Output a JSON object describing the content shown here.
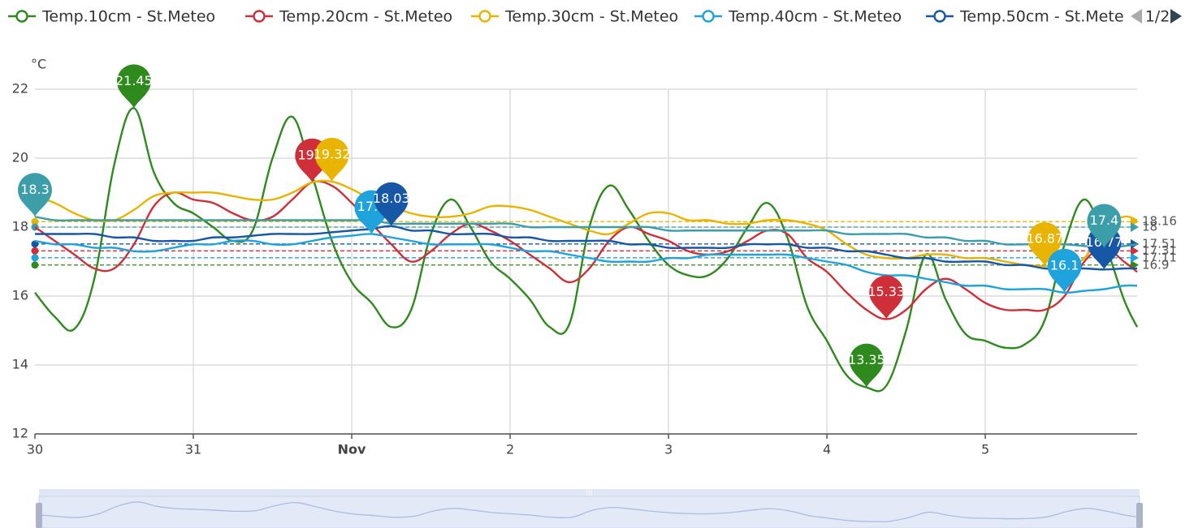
{
  "chart_data": {
    "type": "line",
    "y_label": "°C",
    "legend_page": "1/2",
    "x": [
      0,
      3,
      6,
      9,
      12,
      15,
      18,
      21,
      24,
      27,
      30,
      33,
      36,
      39,
      42,
      45,
      48,
      51,
      54,
      57,
      60,
      63,
      66,
      69,
      72,
      75,
      78,
      81,
      84,
      87,
      90,
      93,
      96,
      99,
      102,
      105,
      108,
      111,
      114,
      117,
      120,
      123,
      126,
      129,
      132,
      135,
      138,
      141,
      144,
      147,
      150,
      153,
      156,
      159,
      162,
      165,
      167
    ],
    "xlim": [
      0,
      167
    ],
    "xticks": [
      {
        "value": 0,
        "label": "30"
      },
      {
        "value": 24,
        "label": "31"
      },
      {
        "value": 48,
        "label": "Nov"
      },
      {
        "value": 72,
        "label": "2"
      },
      {
        "value": 96,
        "label": "3"
      },
      {
        "value": 120,
        "label": "4"
      },
      {
        "value": 144,
        "label": "5"
      }
    ],
    "ylim": [
      12,
      22
    ],
    "yticks": [
      12,
      14,
      16,
      18,
      20,
      22
    ],
    "grid": true,
    "series": [
      {
        "name": "Temp.10cm - St.Meteo",
        "color": "#2f8a1e",
        "average": 16.9,
        "values": [
          16.1,
          15.4,
          15.05,
          16.5,
          19.8,
          21.45,
          19.6,
          18.7,
          18.4,
          18.0,
          17.6,
          17.9,
          20.0,
          21.2,
          19.5,
          17.6,
          16.4,
          15.8,
          15.1,
          15.6,
          17.8,
          18.8,
          18.0,
          17.0,
          16.5,
          15.9,
          15.1,
          15.2,
          18.0,
          19.2,
          18.5,
          17.6,
          16.9,
          16.6,
          16.6,
          17.1,
          18.0,
          18.7,
          17.7,
          15.7,
          14.7,
          13.7,
          13.35,
          13.4,
          15.0,
          17.2,
          15.9,
          14.9,
          14.7,
          14.5,
          14.6,
          15.3,
          17.5,
          18.8,
          17.6,
          15.9,
          15.1
        ]
      },
      {
        "name": "Temp.20cm - St.Meteo",
        "color": "#cf2f38",
        "average": 17.31,
        "values": [
          18.0,
          17.6,
          17.2,
          16.8,
          16.8,
          17.5,
          18.6,
          19.0,
          18.8,
          18.7,
          18.4,
          18.2,
          18.3,
          18.8,
          19.3,
          19.2,
          18.7,
          18.1,
          17.5,
          17.0,
          17.3,
          17.8,
          18.1,
          17.9,
          17.6,
          17.2,
          16.8,
          16.4,
          16.8,
          17.6,
          18.0,
          17.8,
          17.6,
          17.3,
          17.2,
          17.3,
          17.6,
          17.9,
          17.8,
          17.1,
          16.7,
          16.1,
          15.6,
          15.33,
          15.6,
          16.2,
          16.5,
          16.2,
          15.8,
          15.6,
          15.6,
          15.6,
          16.0,
          17.0,
          17.4,
          17.0,
          16.7
        ]
      },
      {
        "name": "Temp.30cm - St.Meteo",
        "color": "#e8b400",
        "average": 18.16,
        "values": [
          18.9,
          18.7,
          18.4,
          18.2,
          18.2,
          18.5,
          18.9,
          19.0,
          19.0,
          19.0,
          18.9,
          18.8,
          18.8,
          19.0,
          19.3,
          19.32,
          19.1,
          18.8,
          18.6,
          18.4,
          18.3,
          18.3,
          18.4,
          18.6,
          18.6,
          18.5,
          18.3,
          18.1,
          17.9,
          17.8,
          18.1,
          18.4,
          18.4,
          18.2,
          18.2,
          18.1,
          18.1,
          18.2,
          18.2,
          18.1,
          17.9,
          17.5,
          17.2,
          17.1,
          17.1,
          17.2,
          17.2,
          17.1,
          17.1,
          17.0,
          16.9,
          16.87,
          16.9,
          17.1,
          18.0,
          18.3,
          18.2
        ]
      },
      {
        "name": "Temp.40cm - St.Meteo",
        "color": "#1ea3dd",
        "average": 17.11,
        "values": [
          17.6,
          17.5,
          17.5,
          17.4,
          17.4,
          17.3,
          17.3,
          17.4,
          17.5,
          17.5,
          17.6,
          17.6,
          17.5,
          17.5,
          17.6,
          17.7,
          17.75,
          17.8,
          17.7,
          17.6,
          17.5,
          17.5,
          17.5,
          17.5,
          17.4,
          17.3,
          17.3,
          17.2,
          17.1,
          17.0,
          17.0,
          17.0,
          17.1,
          17.1,
          17.2,
          17.2,
          17.2,
          17.2,
          17.2,
          17.1,
          17.0,
          16.9,
          16.7,
          16.6,
          16.6,
          16.5,
          16.4,
          16.3,
          16.3,
          16.2,
          16.2,
          16.2,
          16.1,
          16.15,
          16.2,
          16.3,
          16.3
        ]
      },
      {
        "name": "Temp.50cm - St.Meteo",
        "color": "#1657a6",
        "average": 17.51,
        "values": [
          17.8,
          17.8,
          17.8,
          17.8,
          17.7,
          17.7,
          17.6,
          17.6,
          17.6,
          17.7,
          17.7,
          17.75,
          17.8,
          17.8,
          17.8,
          17.85,
          17.9,
          17.95,
          18.03,
          17.9,
          17.9,
          17.8,
          17.8,
          17.8,
          17.7,
          17.7,
          17.6,
          17.6,
          17.6,
          17.6,
          17.5,
          17.5,
          17.4,
          17.4,
          17.4,
          17.4,
          17.5,
          17.5,
          17.5,
          17.4,
          17.4,
          17.3,
          17.3,
          17.2,
          17.1,
          17.1,
          17.0,
          17.0,
          17.0,
          16.9,
          16.9,
          16.8,
          16.8,
          16.8,
          16.77,
          16.8,
          16.8
        ]
      },
      {
        "color": "#3c9ea9",
        "average": 18,
        "values": [
          18.3,
          18.2,
          18.2,
          18.2,
          18.2,
          18.2,
          18.2,
          18.2,
          18.2,
          18.2,
          18.2,
          18.2,
          18.2,
          18.2,
          18.2,
          18.2,
          18.2,
          18.2,
          18.1,
          18.1,
          18.1,
          18.1,
          18.1,
          18.1,
          18.1,
          18.0,
          18.0,
          18.0,
          18.0,
          18.0,
          18.0,
          18.0,
          17.9,
          17.9,
          17.9,
          17.9,
          17.9,
          17.9,
          17.9,
          17.9,
          17.9,
          17.8,
          17.8,
          17.8,
          17.8,
          17.7,
          17.7,
          17.6,
          17.6,
          17.5,
          17.5,
          17.5,
          17.5,
          17.45,
          17.4,
          17.45,
          17.5
        ]
      }
    ]
  }
}
